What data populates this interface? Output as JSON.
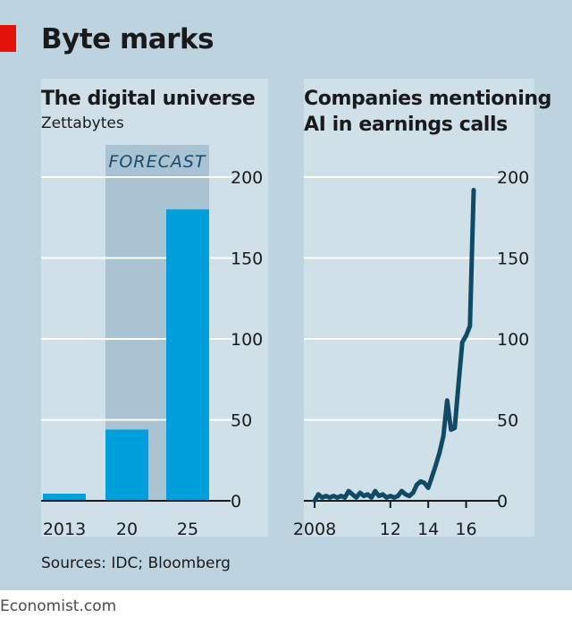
{
  "title": "Byte marks",
  "source": "Sources: IDC; Bloomberg",
  "publisher": "Economist.com",
  "colors": {
    "background": "#bdd3df",
    "panel": "#cfe0e9",
    "forecast_band": "#a9c3d2",
    "bar": "#00a0dc",
    "line": "#0f4a66",
    "accent": "#e3120b"
  },
  "chart_data": [
    {
      "type": "bar",
      "title": "The digital universe",
      "subtitle": "Zettabytes",
      "categories": [
        "2013",
        "20",
        "25"
      ],
      "values": [
        4.4,
        44,
        180
      ],
      "annotation": "FORECAST",
      "ylim": [
        0,
        200
      ],
      "yticks": [
        0,
        50,
        100,
        150,
        200
      ],
      "ytick_labels": [
        "0",
        "50",
        "100",
        "150",
        "200"
      ],
      "grid": true
    },
    {
      "type": "line",
      "title_lines": [
        "Companies mentioning",
        "AI in earnings calls"
      ],
      "xlim": [
        2007.8,
        2017.1
      ],
      "xticks": [
        2008,
        2012,
        2014,
        2016
      ],
      "xtick_labels": [
        "2008",
        "12",
        "14",
        "16"
      ],
      "ylim": [
        0,
        200
      ],
      "yticks": [
        0,
        50,
        100,
        150,
        200
      ],
      "ytick_labels": [
        "0",
        "50",
        "100",
        "150",
        "200"
      ],
      "grid": true,
      "series": [
        {
          "x": [
            2008.0,
            2008.2,
            2008.4,
            2008.6,
            2008.8,
            2009.0,
            2009.2,
            2009.4,
            2009.6,
            2009.8,
            2010.0,
            2010.2,
            2010.4,
            2010.6,
            2010.8,
            2011.0,
            2011.2,
            2011.4,
            2011.6,
            2011.8,
            2012.0,
            2012.2,
            2012.4,
            2012.6,
            2012.8,
            2013.0,
            2013.2,
            2013.4,
            2013.6,
            2013.8,
            2014.0,
            2014.2,
            2014.4,
            2014.6,
            2014.8,
            2015.0,
            2015.2,
            2015.4,
            2015.6,
            2015.8,
            2016.0,
            2016.2,
            2016.4
          ],
          "y": [
            0,
            4,
            2,
            3,
            2,
            3,
            2,
            3,
            2,
            6,
            4,
            2,
            5,
            3,
            4,
            2,
            6,
            3,
            4,
            2,
            3,
            2,
            3,
            6,
            4,
            3,
            5,
            10,
            12,
            11,
            8,
            15,
            22,
            30,
            40,
            62,
            44,
            45,
            72,
            98,
            102,
            108,
            192
          ]
        }
      ]
    }
  ]
}
